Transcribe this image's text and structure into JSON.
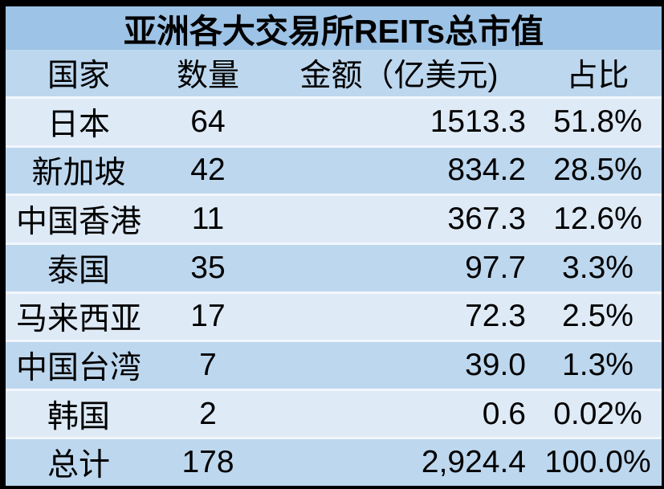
{
  "colors": {
    "border": "#000000",
    "title_bg": "#9DC3E6",
    "header_bg": "#BDD7EE",
    "band_light": "#DEEAF6",
    "band_medium": "#BDD7EE",
    "separator": "#F2F7FC",
    "text": "#000000"
  },
  "chart_data": {
    "type": "table",
    "title": "亚洲各大交易所REITs总市值",
    "columns": [
      "国家",
      "数量",
      "金额（亿美元)",
      "占比"
    ],
    "rows": [
      [
        "日本",
        "64",
        "1513.3",
        "51.8%"
      ],
      [
        "新加坡",
        "42",
        "834.2",
        "28.5%"
      ],
      [
        "中国香港",
        "11",
        "367.3",
        "12.6%"
      ],
      [
        "泰国",
        "35",
        "97.7",
        "3.3%"
      ],
      [
        "马来西亚",
        "17",
        "72.3",
        "2.5%"
      ],
      [
        "中国台湾",
        "7",
        "39.0",
        "1.3%"
      ],
      [
        "韩国",
        "2",
        "0.6",
        "0.02%"
      ],
      [
        "总计",
        "178",
        "2,924.4",
        "100.0%"
      ]
    ]
  }
}
